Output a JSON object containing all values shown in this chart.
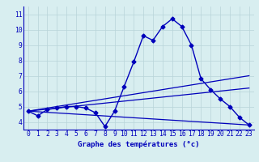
{
  "xlabel": "Graphe des températures (°c)",
  "x": [
    0,
    1,
    2,
    3,
    4,
    5,
    6,
    7,
    8,
    9,
    10,
    11,
    12,
    13,
    14,
    15,
    16,
    17,
    18,
    19,
    20,
    21,
    22,
    23
  ],
  "temps": [
    4.7,
    4.4,
    4.8,
    4.9,
    5.0,
    5.0,
    4.9,
    4.6,
    3.7,
    4.7,
    6.3,
    7.9,
    9.6,
    9.3,
    10.2,
    10.7,
    10.2,
    9.0,
    6.8,
    6.1,
    5.5,
    5.0,
    4.3,
    3.8
  ],
  "trend1_x": [
    0,
    23
  ],
  "trend1_y": [
    4.7,
    7.0
  ],
  "trend2_x": [
    0,
    23
  ],
  "trend2_y": [
    4.7,
    6.2
  ],
  "trend3_x": [
    0,
    23
  ],
  "trend3_y": [
    4.7,
    3.8
  ],
  "ylim": [
    3.5,
    11.5
  ],
  "xlim": [
    -0.5,
    23.5
  ],
  "yticks": [
    4,
    5,
    6,
    7,
    8,
    9,
    10,
    11
  ],
  "xticks": [
    0,
    1,
    2,
    3,
    4,
    5,
    6,
    7,
    8,
    9,
    10,
    11,
    12,
    13,
    14,
    15,
    16,
    17,
    18,
    19,
    20,
    21,
    22,
    23
  ],
  "bg_color": "#d8eef0",
  "grid_color": "#b8d4d8",
  "line_color": "#0000bb",
  "text_color": "#0000bb",
  "tick_fontsize": 5.8,
  "xlabel_fontsize": 6.5
}
